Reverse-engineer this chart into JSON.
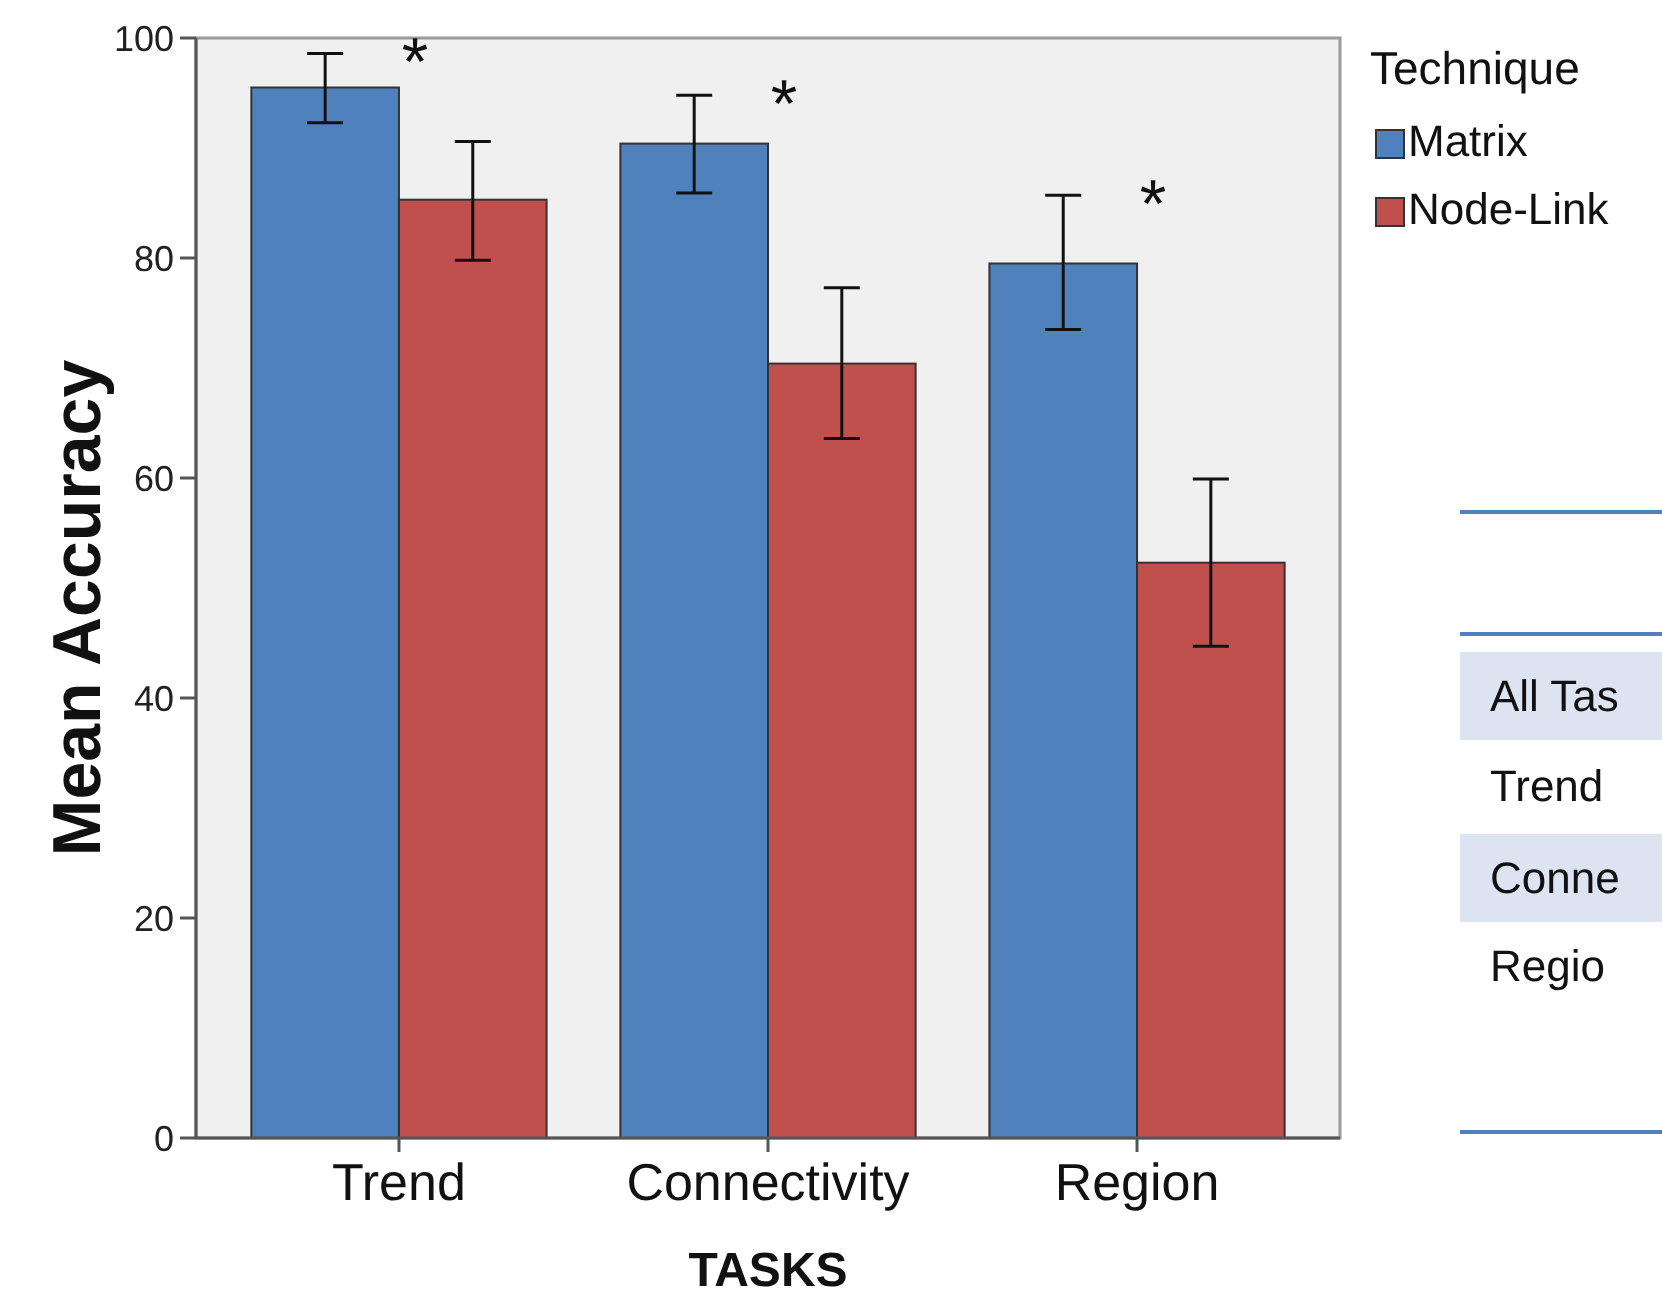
{
  "chart_data": {
    "type": "bar",
    "xlabel": "TASKS",
    "ylabel": "Mean Accuracy",
    "legend_title": "Technique",
    "legend": "top right",
    "grid": false,
    "categories": [
      "Trend",
      "Connectivity",
      "Region"
    ],
    "ylim": [
      0,
      100
    ],
    "yticks": [
      0,
      20,
      40,
      60,
      80,
      100
    ],
    "series": [
      {
        "name": "Matrix",
        "color": "#4f81bd",
        "values": [
          95.5,
          90.4,
          79.5
        ],
        "errors": [
          [
            92.3,
            98.6
          ],
          [
            85.9,
            94.8
          ],
          [
            73.5,
            85.7
          ]
        ]
      },
      {
        "name": "Node-Link",
        "color": "#c0504d",
        "values": [
          85.3,
          70.4,
          52.3
        ],
        "errors": [
          [
            79.8,
            90.6
          ],
          [
            63.6,
            77.3
          ],
          [
            44.7,
            59.9
          ]
        ]
      }
    ],
    "annotations": [
      "*",
      "*",
      "*",
      "All Tas",
      "Trend",
      "Conne",
      "Regio"
    ]
  }
}
